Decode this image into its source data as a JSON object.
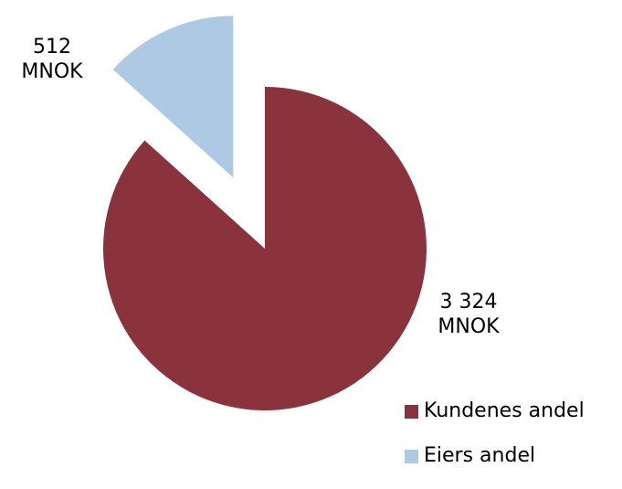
{
  "chart_data": {
    "type": "pie",
    "categories": [
      "Kundenes andel",
      "Eiers andel"
    ],
    "values": [
      3324,
      512
    ],
    "unit": "MNOK",
    "colors": [
      "#8b333d",
      "#adc9e4"
    ],
    "exploded": [
      "Eiers andel"
    ],
    "data_labels": [
      {
        "value": "3 324",
        "unit": "MNOK"
      },
      {
        "value": "512",
        "unit": "MNOK"
      }
    ],
    "legend": {
      "placement": "bottom-right",
      "entries": [
        "Kundenes andel",
        "Eiers andel"
      ]
    }
  }
}
